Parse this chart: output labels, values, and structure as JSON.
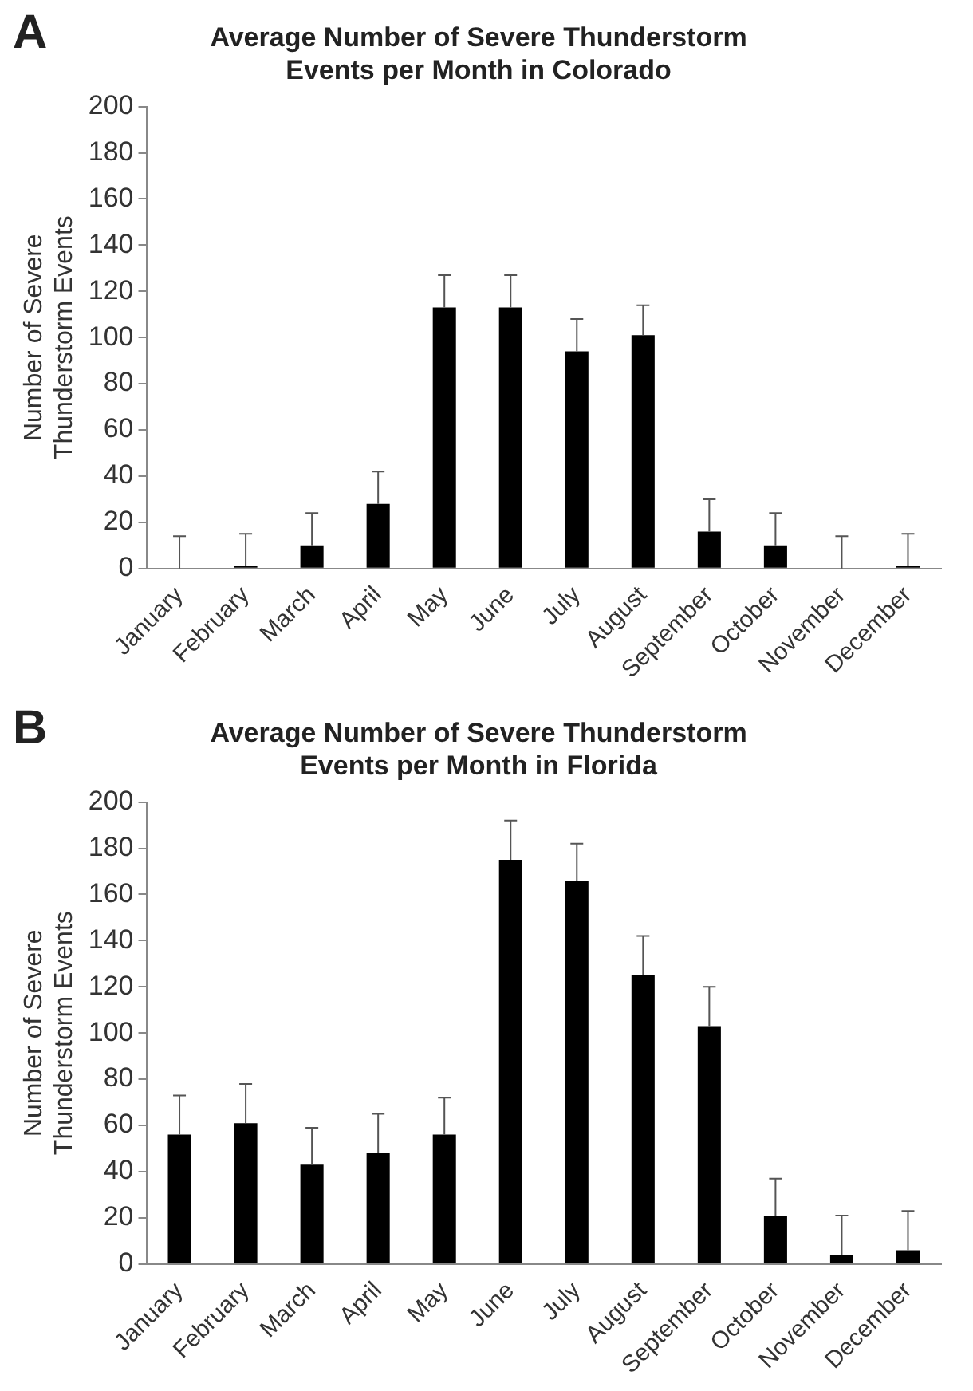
{
  "chart_data": [
    {
      "type": "bar",
      "title": "Average Number of Severe Thunderstorm Events per Month in Colorado",
      "ylabel": "Number of Severe Thunderstorm Events",
      "annotations": [
        "A"
      ],
      "categories": [
        "January",
        "February",
        "March",
        "April",
        "May",
        "June",
        "July",
        "August",
        "September",
        "October",
        "November",
        "December"
      ],
      "values": [
        0,
        1,
        10,
        28,
        113,
        113,
        94,
        101,
        16,
        10,
        0,
        1
      ],
      "errors": [
        [
          0,
          14
        ],
        [
          1,
          15
        ],
        [
          10,
          24
        ],
        [
          28,
          42
        ],
        [
          113,
          127
        ],
        [
          113,
          127
        ],
        [
          94,
          108
        ],
        [
          101,
          114
        ],
        [
          16,
          30
        ],
        [
          10,
          24
        ],
        [
          0,
          14
        ],
        [
          1,
          15
        ]
      ],
      "color": "#000000",
      "ylim": [
        0,
        200
      ],
      "yticks": [
        0,
        20,
        40,
        60,
        80,
        100,
        120,
        140,
        160,
        180,
        200
      ],
      "grid": false,
      "legend": false
    },
    {
      "type": "bar",
      "title": "Average Number of Severe Thunderstorm Events per Month in Florida",
      "ylabel": "Number of Severe Thunderstorm Events",
      "annotations": [
        "B"
      ],
      "categories": [
        "January",
        "February",
        "March",
        "April",
        "May",
        "June",
        "July",
        "August",
        "September",
        "October",
        "November",
        "December"
      ],
      "values": [
        56,
        61,
        43,
        48,
        56,
        175,
        166,
        125,
        103,
        21,
        4,
        6
      ],
      "errors": [
        [
          56,
          73
        ],
        [
          61,
          78
        ],
        [
          43,
          59
        ],
        [
          48,
          65
        ],
        [
          56,
          72
        ],
        [
          175,
          192
        ],
        [
          166,
          182
        ],
        [
          125,
          142
        ],
        [
          103,
          120
        ],
        [
          21,
          37
        ],
        [
          4,
          21
        ],
        [
          6,
          23
        ]
      ],
      "color": "#000000",
      "ylim": [
        0,
        200
      ],
      "yticks": [
        0,
        20,
        40,
        60,
        80,
        100,
        120,
        140,
        160,
        180,
        200
      ],
      "grid": false,
      "legend": false
    }
  ]
}
